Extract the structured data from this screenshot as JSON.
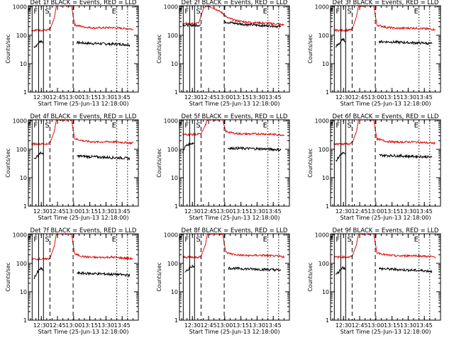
{
  "colors": {
    "events": "#000000",
    "lld": "#e01010",
    "axis": "#000000"
  },
  "common": {
    "ylabel": "Counts/sec",
    "xlabel": "Start Time (25-Jun-13 12:18:00)",
    "xticks": [
      {
        "t": 750,
        "label": "12:30"
      },
      {
        "t": 765,
        "label": "12:45"
      },
      {
        "t": 780,
        "label": "13:00"
      },
      {
        "t": 795,
        "label": "13:15"
      },
      {
        "t": 810,
        "label": "13:30"
      },
      {
        "t": 825,
        "label": "13:45"
      }
    ],
    "yticks": [
      {
        "v": 1,
        "label": "1"
      },
      {
        "v": 10,
        "label": "10"
      },
      {
        "v": 100,
        "label": "100"
      },
      {
        "v": 1000,
        "label": "1000"
      }
    ],
    "markers": [
      {
        "t": 741.5,
        "style": "solid",
        "label": "E"
      },
      {
        "t": 747.5,
        "style": "solid",
        "label": "F"
      },
      {
        "t": 752.0,
        "style": "solid",
        "label": ""
      },
      {
        "t": 758.0,
        "style": "dashed",
        "label": "S"
      },
      {
        "t": 779.5,
        "style": "dashed",
        "label": ""
      },
      {
        "t": 820.0,
        "style": "dotted",
        "label": "E"
      },
      {
        "t": 830.0,
        "style": "dotted",
        "label": ""
      }
    ]
  },
  "chart_data": [
    {
      "type": "line",
      "title": "Det 1f BLACK = Events, RED = LLD",
      "xlim": [
        738,
        840
      ],
      "ylim": [
        1,
        1100
      ],
      "yscale": "log",
      "series": [
        {
          "name": "Events",
          "color": "#000000",
          "segments": [
            {
              "x": [
                743,
                746,
                748,
                750,
                751.5
              ],
              "y": [
                38,
                45,
                60,
                62,
                58
              ]
            },
            {
              "x": [
                783,
                795,
                810,
                825,
                832
              ],
              "y": [
                55,
                52,
                50,
                48,
                46
              ]
            }
          ]
        },
        {
          "name": "LLD",
          "color": "#e01010",
          "x": [
            741,
            755,
            758,
            762,
            764,
            778,
            781,
            790,
            800,
            815,
            825,
            835
          ],
          "y": [
            150,
            152,
            160,
            400,
            1100,
            1100,
            230,
            195,
            180,
            185,
            175,
            165
          ]
        }
      ]
    },
    {
      "type": "line",
      "title": "Det 2f BLACK = Events, RED = LLD",
      "xlim": [
        738,
        840
      ],
      "ylim": [
        1,
        1100
      ],
      "yscale": "log",
      "series": [
        {
          "name": "Events",
          "color": "#000000",
          "segments": [
            {
              "x": [
                741,
                752,
                758
              ],
              "y": [
                230,
                225,
                230
              ]
            },
            {
              "x": [
                780,
                790,
                800,
                815,
                825,
                832
              ],
              "y": [
                300,
                260,
                240,
                220,
                215,
                200
              ]
            }
          ]
        },
        {
          "name": "LLD",
          "color": "#e01010",
          "x": [
            741,
            752,
            756,
            760,
            763,
            766,
            772,
            778,
            782,
            790,
            800,
            815,
            825,
            835
          ],
          "y": [
            260,
            255,
            280,
            800,
            1100,
            1050,
            820,
            600,
            420,
            330,
            290,
            270,
            255,
            230
          ]
        }
      ]
    },
    {
      "type": "line",
      "title": "Det 3f BLACK = Events, RED = LLD",
      "xlim": [
        738,
        840
      ],
      "ylim": [
        1,
        1100
      ],
      "yscale": "log",
      "series": [
        {
          "name": "Events",
          "color": "#000000",
          "segments": [
            {
              "x": [
                743,
                746,
                748,
                750,
                751.5
              ],
              "y": [
                40,
                50,
                65,
                70,
                62
              ]
            },
            {
              "x": [
                783,
                795,
                810,
                825,
                832
              ],
              "y": [
                60,
                58,
                55,
                53,
                50
              ]
            }
          ]
        },
        {
          "name": "LLD",
          "color": "#e01010",
          "x": [
            741,
            755,
            758,
            762,
            764,
            778,
            781,
            790,
            800,
            815,
            825,
            835
          ],
          "y": [
            150,
            150,
            160,
            450,
            1100,
            1100,
            230,
            190,
            175,
            180,
            170,
            160
          ]
        }
      ]
    },
    {
      "type": "line",
      "title": "Det 4f BLACK = Events, RED = LLD",
      "xlim": [
        738,
        840
      ],
      "ylim": [
        1,
        1100
      ],
      "yscale": "log",
      "series": [
        {
          "name": "Events",
          "color": "#000000",
          "segments": [
            {
              "x": [
                743,
                746,
                748,
                750,
                751.5
              ],
              "y": [
                45,
                55,
                70,
                75,
                65
              ]
            },
            {
              "x": [
                783,
                795,
                810,
                825,
                832
              ],
              "y": [
                58,
                55,
                52,
                50,
                47
              ]
            }
          ]
        },
        {
          "name": "LLD",
          "color": "#e01010",
          "x": [
            741,
            755,
            758,
            762,
            764,
            778,
            781,
            790,
            800,
            815,
            825,
            835
          ],
          "y": [
            155,
            155,
            165,
            420,
            1100,
            1100,
            235,
            195,
            180,
            185,
            175,
            165
          ]
        }
      ]
    },
    {
      "type": "line",
      "title": "Det 5f BLACK = Events, RED = LLD",
      "xlim": [
        738,
        840
      ],
      "ylim": [
        1,
        1100
      ],
      "yscale": "log",
      "series": [
        {
          "name": "Events",
          "color": "#000000",
          "segments": [
            {
              "x": [
                741,
                743,
                745,
                748,
                751.5
              ],
              "y": [
                80,
                120,
                140,
                160,
                165
              ]
            },
            {
              "x": [
                783,
                795,
                810,
                825,
                832
              ],
              "y": [
                110,
                108,
                105,
                100,
                95
              ]
            }
          ]
        },
        {
          "name": "LLD",
          "color": "#e01010",
          "x": [
            741,
            755,
            758,
            762,
            764,
            778,
            781,
            790,
            800,
            815,
            825,
            835
          ],
          "y": [
            330,
            335,
            350,
            700,
            1100,
            1100,
            420,
            360,
            345,
            350,
            335,
            320
          ]
        }
      ]
    },
    {
      "type": "line",
      "title": "Det 6f BLACK = Events, RED = LLD",
      "xlim": [
        738,
        840
      ],
      "ylim": [
        1,
        1100
      ],
      "yscale": "log",
      "series": [
        {
          "name": "Events",
          "color": "#000000",
          "segments": [
            {
              "x": [
                743,
                746,
                748,
                750,
                751.5
              ],
              "y": [
                40,
                55,
                70,
                75,
                66
              ]
            },
            {
              "x": [
                783,
                795,
                810,
                825,
                832
              ],
              "y": [
                62,
                60,
                57,
                55,
                52
              ]
            }
          ]
        },
        {
          "name": "LLD",
          "color": "#e01010",
          "x": [
            741,
            755,
            758,
            762,
            764,
            778,
            781,
            790,
            800,
            815,
            825,
            835
          ],
          "y": [
            155,
            155,
            165,
            420,
            1100,
            1100,
            230,
            190,
            178,
            182,
            172,
            162
          ]
        }
      ]
    },
    {
      "type": "line",
      "title": "Det 7f BLACK = Events, RED = LLD",
      "xlim": [
        738,
        840
      ],
      "ylim": [
        1,
        1100
      ],
      "yscale": "log",
      "series": [
        {
          "name": "Events",
          "color": "#000000",
          "segments": [
            {
              "x": [
                743,
                746,
                748,
                750,
                751.5
              ],
              "y": [
                30,
                45,
                60,
                65,
                58
              ]
            },
            {
              "x": [
                783,
                795,
                810,
                825,
                832
              ],
              "y": [
                45,
                44,
                42,
                40,
                38
              ]
            }
          ]
        },
        {
          "name": "LLD",
          "color": "#e01010",
          "x": [
            741,
            755,
            758,
            762,
            764,
            778,
            781,
            790,
            800,
            815,
            825,
            835
          ],
          "y": [
            140,
            142,
            150,
            400,
            1100,
            1100,
            210,
            170,
            160,
            165,
            155,
            145
          ]
        }
      ]
    },
    {
      "type": "line",
      "title": "Det 8f BLACK = Events, RED = LLD",
      "xlim": [
        738,
        840
      ],
      "ylim": [
        1,
        1100
      ],
      "yscale": "log",
      "series": [
        {
          "name": "Events",
          "color": "#000000",
          "segments": [
            {
              "x": [
                743,
                746,
                748,
                750,
                751.5
              ],
              "y": [
                45,
                60,
                75,
                80,
                72
              ]
            },
            {
              "x": [
                783,
                795,
                810,
                825,
                832
              ],
              "y": [
                68,
                65,
                62,
                60,
                57
              ]
            }
          ]
        },
        {
          "name": "LLD",
          "color": "#e01010",
          "x": [
            741,
            755,
            758,
            762,
            764,
            778,
            781,
            790,
            800,
            815,
            825,
            835
          ],
          "y": [
            165,
            165,
            175,
            450,
            1100,
            1100,
            240,
            200,
            188,
            192,
            182,
            172
          ]
        }
      ]
    },
    {
      "type": "line",
      "title": "Det 9f BLACK = Events, RED = LLD",
      "xlim": [
        738,
        840
      ],
      "ylim": [
        1,
        1100
      ],
      "yscale": "log",
      "series": [
        {
          "name": "Events",
          "color": "#000000",
          "segments": [
            {
              "x": [
                743,
                746,
                748,
                750,
                751.5
              ],
              "y": [
                40,
                52,
                68,
                72,
                64
              ]
            },
            {
              "x": [
                783,
                795,
                810,
                825,
                832
              ],
              "y": [
                65,
                62,
                58,
                55,
                52
              ]
            }
          ]
        },
        {
          "name": "LLD",
          "color": "#e01010",
          "x": [
            741,
            755,
            758,
            762,
            764,
            778,
            781,
            790,
            800,
            815,
            825,
            835
          ],
          "y": [
            165,
            168,
            175,
            450,
            1100,
            1100,
            240,
            195,
            182,
            188,
            178,
            168
          ]
        }
      ]
    }
  ]
}
